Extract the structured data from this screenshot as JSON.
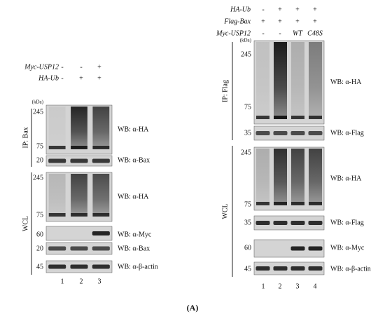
{
  "left": {
    "treatments": [
      {
        "name": "Myc-USP12",
        "marks": [
          "-",
          "-",
          "+"
        ]
      },
      {
        "name": "HA-Ub",
        "marks": [
          "-",
          "+",
          "+"
        ]
      }
    ],
    "kda": "(kDa)",
    "groups": [
      {
        "name": "IP: Bax",
        "blots": [
          {
            "markers": [
              "245",
              "75"
            ],
            "antibody": "WB: α-HA"
          },
          {
            "markers": [
              "20"
            ],
            "antibody": "WB: α-Bax"
          }
        ]
      },
      {
        "name": "WCL",
        "blots": [
          {
            "markers": [
              "245",
              "75"
            ],
            "antibody": "WB: α-HA"
          },
          {
            "markers": [
              "60"
            ],
            "antibody": "WB: α-Myc"
          },
          {
            "markers": [
              "20"
            ],
            "antibody": "WB: α-Bax"
          },
          {
            "markers": [
              "45"
            ],
            "antibody": "WB: α-β-actin"
          }
        ]
      }
    ],
    "lanes": [
      "1",
      "2",
      "3"
    ]
  },
  "right": {
    "treatments": [
      {
        "name": "HA-Ub",
        "marks": [
          "-",
          "+",
          "+",
          "+"
        ]
      },
      {
        "name": "Flag-Bax",
        "marks": [
          "+",
          "+",
          "+",
          "+"
        ]
      },
      {
        "name": "Myc-USP12",
        "marks": [
          "-",
          "-",
          "WT",
          "C48S"
        ]
      }
    ],
    "kda": "(kDa)",
    "groups": [
      {
        "name": "IP: Flag",
        "blots": [
          {
            "markers": [
              "245",
              "75"
            ],
            "antibody": "WB: α-HA"
          },
          {
            "markers": [
              "35"
            ],
            "antibody": "WB: α-Flag"
          }
        ]
      },
      {
        "name": "WCL",
        "blots": [
          {
            "markers": [
              "245",
              "75"
            ],
            "antibody": "WB: α-HA"
          },
          {
            "markers": [
              "35"
            ],
            "antibody": "WB: α-Flag"
          },
          {
            "markers": [
              "60"
            ],
            "antibody": "WB: α-Myc"
          },
          {
            "markers": [
              "45"
            ],
            "antibody": "WB: α-β-actin"
          }
        ]
      }
    ],
    "lanes": [
      "1",
      "2",
      "3",
      "4"
    ]
  },
  "caption": "(A)"
}
